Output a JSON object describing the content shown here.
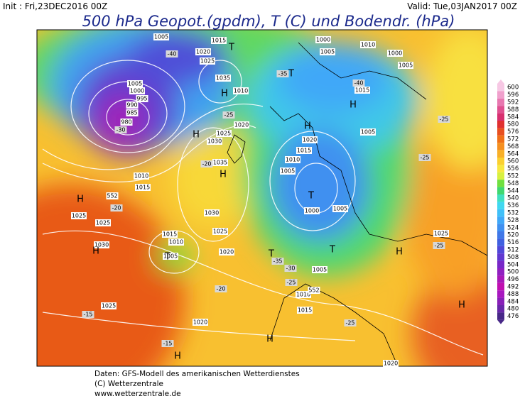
{
  "header": {
    "init": "Init : Fri,23DEC2016 00Z",
    "valid": "Valid: Tue,03JAN2017 00Z",
    "title": "500 hPa Geopot.(gpdm), T (C) und Bodendr. (hPa)"
  },
  "colorbar": {
    "levels": [
      600,
      596,
      592,
      588,
      584,
      580,
      576,
      572,
      568,
      564,
      560,
      556,
      552,
      548,
      544,
      540,
      536,
      532,
      528,
      524,
      520,
      516,
      512,
      508,
      504,
      500,
      496,
      492,
      488,
      484,
      480,
      476
    ],
    "colors": [
      "#f7c8e4",
      "#f0a0cc",
      "#e878b0",
      "#e05090",
      "#d83070",
      "#e03030",
      "#e85020",
      "#f07018",
      "#f59020",
      "#f8b028",
      "#fbd030",
      "#f8e840",
      "#d8f040",
      "#70e040",
      "#40d870",
      "#40e0c0",
      "#40d8f0",
      "#40c0f8",
      "#40a8f8",
      "#4090f0",
      "#4078e8",
      "#4060e0",
      "#5048d8",
      "#6038d0",
      "#7828c8",
      "#9020c0",
      "#a818b8",
      "#c010b0",
      "#a818c0",
      "#8820b8",
      "#6828a8",
      "#482888"
    ]
  },
  "map_labels": [
    "1005",
    "1015",
    "1020",
    "1025",
    "1035",
    "1010",
    "1005",
    "1000",
    "995",
    "990",
    "985",
    "980",
    "1000",
    "1005",
    "1000",
    "1010",
    "1005",
    "1015",
    "1005",
    "1020",
    "1025",
    "1030",
    "1035",
    "1020",
    "1015",
    "1010",
    "1005",
    "1000",
    "1005",
    "1010",
    "1015",
    "1030",
    "1025",
    "1020",
    "1015",
    "1010",
    "1005",
    "1025",
    "1025",
    "1030",
    "1025",
    "1020",
    "1015",
    "1010",
    "1005",
    "1025",
    "1020",
    "552",
    "552",
    "-40",
    "-35",
    "-30",
    "-25",
    "-20",
    "-20",
    "-15",
    "-15",
    "-20",
    "-25",
    "-30",
    "-35",
    "-25",
    "-25",
    "-25",
    "-25",
    "-40",
    "H",
    "H",
    "H",
    "H",
    "H",
    "H",
    "H",
    "H",
    "H",
    "H",
    "H",
    "T",
    "T",
    "T",
    "T",
    "T",
    "T"
  ],
  "footer": [
    "Daten: GFS-Modell des amerikanischen Wetterdienstes",
    "(C) Wetterzentrale",
    "www.wetterzentrale.de"
  ]
}
